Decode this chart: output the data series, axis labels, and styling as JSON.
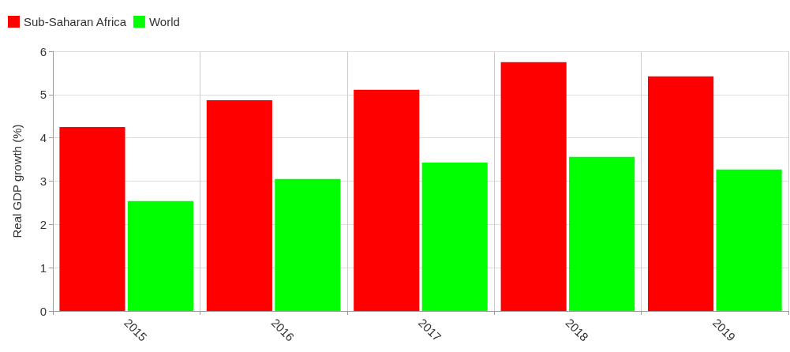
{
  "chart_data": {
    "type": "bar",
    "ylabel": "Real GDP growth (%)",
    "categories": [
      "2015",
      "2016",
      "2017",
      "2018",
      "2019"
    ],
    "series": [
      {
        "name": "Sub-Saharan Africa",
        "color": "#ff0000",
        "values": [
          4.25,
          4.87,
          5.11,
          5.75,
          5.42
        ]
      },
      {
        "name": "World",
        "color": "#00ff00",
        "values": [
          2.54,
          3.05,
          3.43,
          3.56,
          3.27
        ]
      }
    ],
    "ylim": [
      0,
      6
    ],
    "yticks": [
      0,
      1,
      2,
      3,
      4,
      5,
      6
    ],
    "grid": true,
    "legend": "top left"
  }
}
